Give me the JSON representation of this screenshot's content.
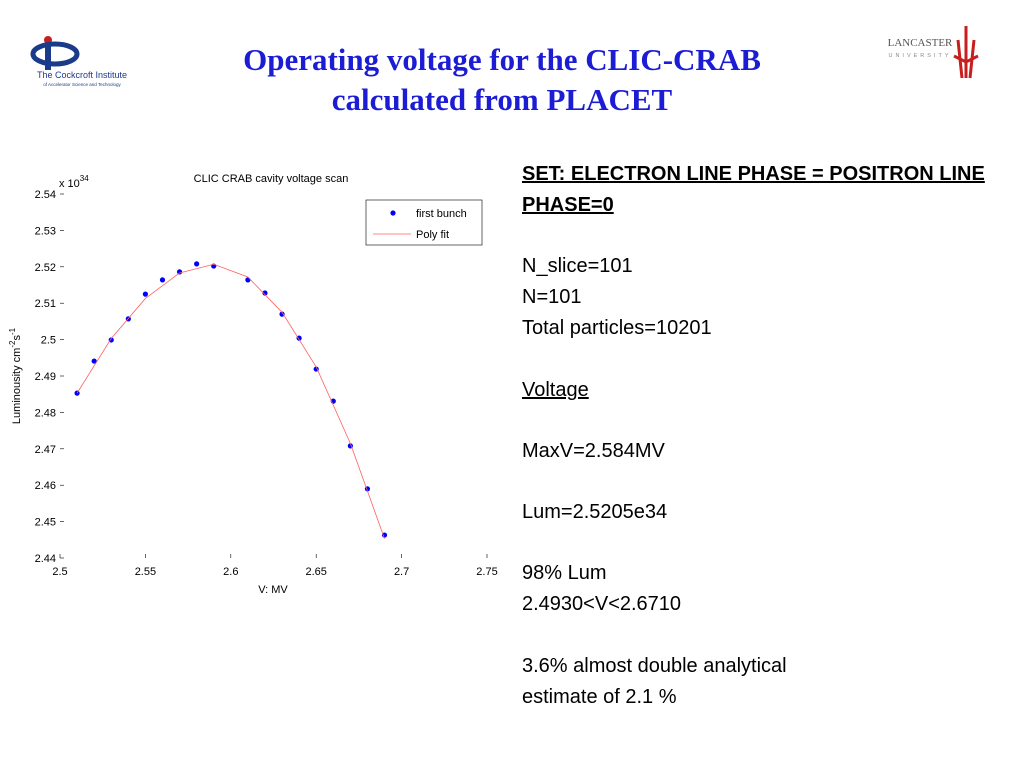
{
  "header": {
    "title": [
      "Operating voltage for the CLIC-CRAB",
      "calculated from PLACET"
    ],
    "left_logo": [
      "The Cockcroft Institute",
      "of Accelerator Science and Technology"
    ],
    "right_logo": [
      "LANCASTER",
      "UNIVERSITY"
    ]
  },
  "chart_data": {
    "type": "scatter",
    "title": "CLIC CRAB cavity voltage scan",
    "xlabel": "V: MV",
    "ylabel": [
      "Luminousity cm",
      "-2",
      "s",
      "-1"
    ],
    "multiplier": [
      "x 10",
      "34"
    ],
    "xlim": [
      2.5,
      2.75
    ],
    "xticks": [
      2.5,
      2.55,
      2.6,
      2.65,
      2.7,
      2.75
    ],
    "ylim": [
      2.44,
      2.54
    ],
    "yticks": [
      2.44,
      2.45,
      2.46,
      2.47,
      2.48,
      2.49,
      2.5,
      2.51,
      2.52,
      2.53,
      2.54
    ],
    "series": [
      {
        "name": "first bunch",
        "color": "#0000ff",
        "mode": "markers",
        "x": [
          2.51,
          2.52,
          2.53,
          2.54,
          2.55,
          2.56,
          2.57,
          2.58,
          2.59,
          2.61,
          2.62,
          2.63,
          2.64,
          2.65,
          2.66,
          2.67,
          2.68,
          2.69
        ],
        "values": [
          2.4853,
          2.4941,
          2.4999,
          2.5057,
          2.5125,
          2.5164,
          2.5186,
          2.5208,
          2.5202,
          2.5164,
          2.5128,
          2.507,
          2.5004,
          2.4919,
          2.4831,
          2.4708,
          2.459,
          2.4463
        ]
      },
      {
        "name": "Poly fit",
        "color": "#ff6060",
        "mode": "line",
        "x": [
          2.51,
          2.53,
          2.55,
          2.57,
          2.59,
          2.61,
          2.63,
          2.65,
          2.67,
          2.69
        ],
        "values": [
          2.4853,
          2.5003,
          2.5113,
          2.5183,
          2.5207,
          2.5172,
          2.5075,
          2.4925,
          2.4715,
          2.4453
        ]
      }
    ],
    "legend": "upper right"
  },
  "notes": [
    "SET: ELECTRON LINE PHASE = POSITRON LINE",
    "PHASE=0",
    "N_slice=101",
    "N=101",
    "Total particles=10201",
    "Voltage",
    "MaxV=2.584MV",
    "Lum=2.5205e34",
    "98% Lum",
    "2.4930<V<2.6710",
    "3.6% almost double analytical",
    "estimate of 2.1 %"
  ]
}
